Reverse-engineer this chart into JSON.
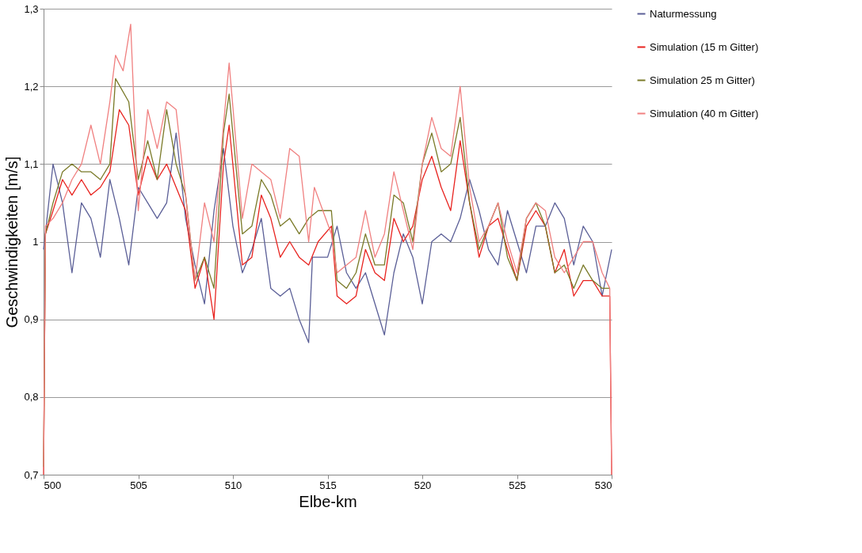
{
  "chart_data": {
    "type": "line",
    "xlabel": "Elbe-km",
    "ylabel": "Geschwindigkeiten [m/s]",
    "xlim": [
      500,
      530
    ],
    "xticks": [
      500,
      505,
      510,
      515,
      520,
      525,
      530
    ],
    "ylim": [
      0.7,
      1.3
    ],
    "yticks": [
      {
        "value": 0.7,
        "label": "0,7"
      },
      {
        "value": 0.8,
        "label": "0,8"
      },
      {
        "value": 0.9,
        "label": "0,9"
      },
      1,
      {
        "value": 1.1,
        "label": "1,1"
      },
      {
        "value": 1.2,
        "label": "1,2"
      },
      {
        "value": 1.3,
        "label": "1,3"
      }
    ],
    "grid": "y",
    "legend": "right",
    "marker": "none",
    "line_style": "solid",
    "series": [
      {
        "name": "Naturmessung",
        "color": "#5b5f97",
        "x": [
          500.0,
          500.5,
          501.0,
          501.5,
          502.0,
          502.5,
          503.0,
          503.5,
          504.0,
          504.5,
          505.0,
          505.5,
          506.0,
          506.5,
          507.0,
          507.5,
          508.0,
          508.5,
          509.0,
          509.5,
          510.0,
          510.5,
          511.0,
          511.5,
          512.0,
          512.5,
          513.0,
          513.5,
          514.0,
          514.2,
          515.0,
          515.5,
          516.0,
          516.5,
          517.0,
          517.5,
          518.0,
          518.5,
          519.0,
          519.5,
          520.0,
          520.5,
          521.0,
          521.5,
          522.0,
          522.5,
          523.0,
          523.5,
          524.0,
          524.5,
          525.0,
          525.5,
          526.0,
          526.5,
          527.0,
          527.5,
          528.0,
          528.5,
          529.0,
          529.5,
          530.0
        ],
        "values": [
          0.99,
          1.1,
          1.05,
          0.96,
          1.05,
          1.03,
          0.98,
          1.08,
          1.03,
          0.97,
          1.07,
          1.05,
          1.03,
          1.05,
          1.14,
          1.03,
          0.97,
          0.92,
          1.04,
          1.12,
          1.02,
          0.96,
          0.99,
          1.03,
          0.94,
          0.93,
          0.94,
          0.9,
          0.87,
          0.98,
          0.98,
          1.02,
          0.96,
          0.94,
          0.96,
          0.92,
          0.88,
          0.96,
          1.01,
          0.98,
          0.92,
          1.0,
          1.01,
          1.0,
          1.03,
          1.08,
          1.04,
          0.99,
          0.97,
          1.04,
          1.0,
          0.96,
          1.02,
          1.02,
          1.05,
          1.03,
          0.97,
          1.02,
          1.0,
          0.93,
          0.99
        ]
      },
      {
        "name": "Simulation (15 m Gitter)",
        "color": "#e8231f",
        "x": [
          500.0,
          500.1,
          500.5,
          501.0,
          501.5,
          502.0,
          502.5,
          503.0,
          503.5,
          504.0,
          504.5,
          505.0,
          505.5,
          506.0,
          506.5,
          507.0,
          507.5,
          508.0,
          508.5,
          509.0,
          509.5,
          509.8,
          510.5,
          511.0,
          511.5,
          512.0,
          512.5,
          513.0,
          513.5,
          514.0,
          514.5,
          515.2,
          515.5,
          516.0,
          516.5,
          517.0,
          517.5,
          518.0,
          518.5,
          519.0,
          519.5,
          520.0,
          520.5,
          521.0,
          521.5,
          522.0,
          522.5,
          523.0,
          523.5,
          524.0,
          524.5,
          525.0,
          525.5,
          526.0,
          526.5,
          527.0,
          527.5,
          528.0,
          528.5,
          529.0,
          529.5,
          529.9,
          530.0
        ],
        "values": [
          0.7,
          1.01,
          1.04,
          1.08,
          1.06,
          1.08,
          1.06,
          1.07,
          1.09,
          1.17,
          1.15,
          1.06,
          1.11,
          1.08,
          1.1,
          1.07,
          1.04,
          0.94,
          0.98,
          0.9,
          1.1,
          1.15,
          0.97,
          0.98,
          1.06,
          1.03,
          0.98,
          1.0,
          0.98,
          0.97,
          1.0,
          1.02,
          0.93,
          0.92,
          0.93,
          0.99,
          0.96,
          0.95,
          1.03,
          1.0,
          1.02,
          1.08,
          1.11,
          1.07,
          1.04,
          1.13,
          1.05,
          0.98,
          1.02,
          1.03,
          0.99,
          0.95,
          1.02,
          1.04,
          1.02,
          0.96,
          0.99,
          0.93,
          0.95,
          0.95,
          0.93,
          0.93,
          0.7
        ]
      },
      {
        "name": "Simulation 25 m Gitter)",
        "color": "#7a7a28",
        "x": [
          500.0,
          500.1,
          500.5,
          501.0,
          501.5,
          502.0,
          502.5,
          503.0,
          503.5,
          503.8,
          504.5,
          505.0,
          505.5,
          506.0,
          506.5,
          507.0,
          507.5,
          508.0,
          508.5,
          509.0,
          509.5,
          509.8,
          510.5,
          511.0,
          511.5,
          512.0,
          512.5,
          513.0,
          513.5,
          514.0,
          514.5,
          515.2,
          515.5,
          516.0,
          516.5,
          517.0,
          517.5,
          518.0,
          518.5,
          519.0,
          519.5,
          520.0,
          520.5,
          521.0,
          521.5,
          522.0,
          522.5,
          523.0,
          523.5,
          524.0,
          524.5,
          525.0,
          525.5,
          526.0,
          526.5,
          527.0,
          527.5,
          528.0,
          528.5,
          529.0,
          529.5,
          529.9
        ],
        "values": [
          0.71,
          1.01,
          1.05,
          1.09,
          1.1,
          1.09,
          1.09,
          1.08,
          1.1,
          1.21,
          1.18,
          1.08,
          1.13,
          1.08,
          1.17,
          1.1,
          1.06,
          0.95,
          0.98,
          0.94,
          1.14,
          1.19,
          1.01,
          1.02,
          1.08,
          1.06,
          1.02,
          1.03,
          1.01,
          1.03,
          1.04,
          1.04,
          0.95,
          0.94,
          0.96,
          1.01,
          0.97,
          0.97,
          1.06,
          1.05,
          1.0,
          1.1,
          1.14,
          1.09,
          1.1,
          1.16,
          1.05,
          0.99,
          1.02,
          1.05,
          0.98,
          0.95,
          1.03,
          1.05,
          1.02,
          0.96,
          0.97,
          0.94,
          0.97,
          0.95,
          0.94,
          0.94
        ]
      },
      {
        "name": "Simulation (40 m Gitter)",
        "color": "#f08080",
        "x": [
          500.0,
          500.1,
          500.5,
          501.0,
          501.5,
          502.0,
          502.5,
          503.0,
          503.5,
          503.8,
          504.2,
          504.6,
          505.0,
          505.5,
          506.0,
          506.5,
          507.0,
          507.5,
          508.0,
          508.5,
          509.0,
          509.5,
          509.8,
          510.5,
          511.0,
          511.5,
          512.0,
          512.5,
          513.0,
          513.5,
          514.0,
          514.3,
          515.2,
          515.5,
          516.0,
          516.5,
          517.0,
          517.5,
          518.0,
          518.5,
          519.0,
          519.5,
          520.0,
          520.5,
          521.0,
          521.5,
          522.0,
          522.5,
          523.0,
          523.5,
          524.0,
          524.5,
          525.0,
          525.5,
          526.0,
          526.5,
          527.0,
          527.5,
          528.0,
          528.5,
          529.0,
          529.5,
          529.9,
          530.0
        ],
        "values": [
          0.7,
          1.02,
          1.03,
          1.05,
          1.08,
          1.1,
          1.15,
          1.1,
          1.18,
          1.24,
          1.22,
          1.28,
          1.04,
          1.17,
          1.12,
          1.18,
          1.17,
          1.06,
          0.95,
          1.05,
          1.0,
          1.15,
          1.23,
          1.03,
          1.1,
          1.09,
          1.08,
          1.03,
          1.12,
          1.11,
          1.0,
          1.07,
          1.01,
          0.96,
          0.97,
          0.98,
          1.04,
          0.98,
          1.01,
          1.09,
          1.04,
          0.99,
          1.1,
          1.16,
          1.12,
          1.11,
          1.2,
          1.07,
          1.0,
          1.02,
          1.05,
          1.0,
          0.96,
          1.03,
          1.05,
          1.04,
          0.98,
          0.96,
          0.98,
          1.0,
          1.0,
          0.96,
          0.94,
          0.7
        ]
      }
    ]
  }
}
